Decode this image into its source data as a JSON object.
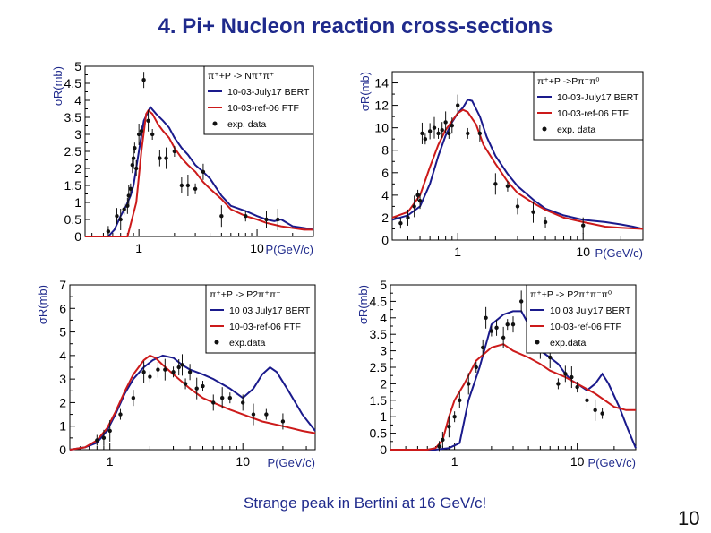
{
  "page": {
    "title": "4.  Pi+ Nucleon reaction cross-sections",
    "note": "Strange peak in Bertini at 16 GeV/c!",
    "page_number": "10"
  },
  "colors": {
    "bert": "#1a1a8c",
    "ftf": "#cc1a1a",
    "data": "#111111",
    "title": "#1f2a8c"
  },
  "chart_data": [
    {
      "type": "line",
      "ylabel": "σR(mb)",
      "xlabel": "P(GeV/c)",
      "xscale": "log",
      "xlim": [
        0.35,
        30
      ],
      "ylim": [
        0,
        5
      ],
      "yticks": [
        "0",
        "0.5",
        "1",
        "1.5",
        "2",
        "2.5",
        "3",
        "3.5",
        "4",
        "4.5",
        "5"
      ],
      "xticks": [
        {
          "v": 1,
          "label": "1"
        },
        {
          "v": 10,
          "label": "10"
        }
      ],
      "legend": [
        "π⁺+P -> Nπ⁺π⁺",
        "10-03-July17 BERT",
        "10-03-ref-06 FTF",
        "exp. data"
      ],
      "series": [
        {
          "key": "bert",
          "x": [
            0.35,
            0.55,
            0.62,
            0.7,
            0.78,
            0.85,
            0.9,
            1.0,
            1.1,
            1.25,
            1.4,
            1.6,
            1.8,
            2.0,
            2.3,
            2.6,
            3,
            3.5,
            4,
            5,
            6,
            8,
            10,
            12,
            14,
            16,
            20,
            25,
            30
          ],
          "y": [
            0,
            0,
            0.2,
            0.6,
            0.9,
            1.2,
            1.5,
            2.5,
            3.4,
            3.8,
            3.6,
            3.4,
            3.2,
            2.9,
            2.6,
            2.4,
            2.1,
            1.9,
            1.7,
            1.2,
            0.9,
            0.75,
            0.6,
            0.5,
            0.45,
            0.5,
            0.3,
            0.25,
            0.2
          ]
        },
        {
          "key": "ftf",
          "x": [
            0.35,
            0.8,
            0.95,
            1.05,
            1.15,
            1.2,
            1.3,
            1.45,
            1.6,
            1.8,
            2.0,
            2.3,
            2.6,
            3,
            3.5,
            4,
            5,
            6,
            8,
            10,
            12,
            16,
            20,
            25,
            30
          ],
          "y": [
            0,
            0,
            1.0,
            2.5,
            3.6,
            3.7,
            3.6,
            3.3,
            3.1,
            2.9,
            2.6,
            2.3,
            2.1,
            1.9,
            1.6,
            1.4,
            1.1,
            0.8,
            0.6,
            0.5,
            0.4,
            0.3,
            0.25,
            0.2,
            0.2
          ]
        },
        {
          "key": "data",
          "x": [
            0.55,
            0.65,
            0.7,
            0.75,
            0.8,
            0.82,
            0.85,
            0.88,
            0.9,
            0.92,
            0.95,
            1.0,
            1.05,
            1.1,
            1.2,
            1.3,
            1.5,
            1.7,
            2.0,
            2.3,
            2.6,
            3,
            3.5,
            5,
            8,
            12,
            15
          ],
          "y": [
            0.15,
            0.6,
            0.5,
            0.8,
            0.9,
            1.2,
            1.4,
            2.1,
            2.3,
            2.6,
            2.0,
            3.0,
            3.1,
            4.6,
            3.4,
            3.0,
            2.3,
            2.3,
            2.5,
            1.5,
            1.5,
            1.4,
            1.9,
            0.6,
            0.6,
            0.5,
            0.5
          ]
        }
      ]
    },
    {
      "type": "line",
      "ylabel": "σR(mb)",
      "xlabel": "P(GeV/c)",
      "xscale": "log",
      "xlim": [
        0.3,
        30
      ],
      "ylim": [
        0,
        15
      ],
      "yticks": [
        "0",
        "2",
        "4",
        "6",
        "8",
        "10",
        "12",
        "14"
      ],
      "xticks": [
        {
          "v": 1,
          "label": "1"
        },
        {
          "v": 10,
          "label": "10"
        }
      ],
      "legend": [
        "π⁺+P ->Pπ⁺π⁰",
        "10-03-July17 BERT",
        "10-03-ref-06 FTF",
        "exp. data"
      ],
      "series": [
        {
          "key": "bert",
          "x": [
            0.3,
            0.4,
            0.5,
            0.6,
            0.7,
            0.8,
            0.9,
            1.0,
            1.1,
            1.2,
            1.3,
            1.5,
            1.7,
            2,
            2.5,
            3,
            4,
            5,
            7,
            10,
            15,
            20,
            25,
            30
          ],
          "y": [
            1.8,
            2.2,
            3.0,
            5.0,
            7.5,
            9.3,
            10.5,
            11.3,
            11.8,
            12.5,
            12.4,
            11.0,
            9.2,
            7.5,
            5.9,
            4.8,
            3.6,
            2.8,
            2.2,
            1.8,
            1.6,
            1.4,
            1.2,
            1.0
          ]
        },
        {
          "key": "ftf",
          "x": [
            0.3,
            0.4,
            0.5,
            0.6,
            0.7,
            0.8,
            0.9,
            1.0,
            1.1,
            1.2,
            1.4,
            1.6,
            2,
            2.5,
            3,
            4,
            5,
            7,
            10,
            15,
            20,
            30
          ],
          "y": [
            2.0,
            2.5,
            4.0,
            6.5,
            8.5,
            9.8,
            10.6,
            11.3,
            11.6,
            11.4,
            10.3,
            8.5,
            6.8,
            5.2,
            4.2,
            3.3,
            2.7,
            2.0,
            1.6,
            1.2,
            1.1,
            1.0
          ]
        },
        {
          "key": "data",
          "x": [
            0.35,
            0.4,
            0.45,
            0.48,
            0.5,
            0.52,
            0.55,
            0.6,
            0.65,
            0.7,
            0.75,
            0.8,
            0.85,
            0.9,
            1.0,
            1.2,
            1.5,
            2,
            2.5,
            3,
            4,
            5,
            10
          ],
          "y": [
            1.5,
            2.0,
            3.0,
            4.0,
            3.5,
            9.5,
            9.0,
            9.7,
            10.0,
            9.5,
            9.8,
            10.5,
            9.5,
            10.2,
            12.0,
            9.5,
            9.5,
            5.0,
            4.8,
            3.0,
            2.5,
            1.6,
            1.3
          ]
        }
      ]
    },
    {
      "type": "line",
      "ylabel": "σR(mb)",
      "xlabel": "P(GeV/c)",
      "xscale": "log",
      "xlim": [
        0.5,
        35
      ],
      "ylim": [
        0,
        7
      ],
      "yticks": [
        "0",
        "1",
        "2",
        "3",
        "4",
        "5",
        "6",
        "7"
      ],
      "xticks": [
        {
          "v": 1,
          "label": "1"
        },
        {
          "v": 10,
          "label": "10"
        }
      ],
      "legend": [
        "π⁺+P -> P2π⁺π⁻",
        "10 03 July17 BERT",
        "10-03-ref-06 FTF",
        "exp.data"
      ],
      "series": [
        {
          "key": "bert",
          "x": [
            0.5,
            0.65,
            0.8,
            0.95,
            1.1,
            1.3,
            1.5,
            1.8,
            2.1,
            2.5,
            3,
            3.5,
            4,
            5,
            6,
            8,
            10,
            12,
            14,
            16,
            18,
            22,
            28,
            35
          ],
          "y": [
            0,
            0.1,
            0.3,
            0.8,
            1.5,
            2.4,
            3.0,
            3.5,
            3.8,
            4.0,
            3.9,
            3.6,
            3.4,
            3.2,
            3.0,
            2.6,
            2.2,
            2.6,
            3.2,
            3.5,
            3.3,
            2.5,
            1.5,
            0.8
          ]
        },
        {
          "key": "ftf",
          "x": [
            0.5,
            0.65,
            0.8,
            0.95,
            1.1,
            1.3,
            1.5,
            1.8,
            2.0,
            2.2,
            2.5,
            3,
            4,
            5,
            6,
            8,
            10,
            14,
            20,
            28,
            35
          ],
          "y": [
            0,
            0.1,
            0.4,
            0.9,
            1.6,
            2.5,
            3.2,
            3.8,
            4.0,
            3.9,
            3.6,
            3.2,
            2.6,
            2.2,
            2.0,
            1.7,
            1.5,
            1.2,
            1.0,
            0.8,
            0.7
          ]
        },
        {
          "key": "data",
          "x": [
            0.8,
            0.9,
            1.0,
            1.2,
            1.5,
            1.8,
            2,
            2.3,
            2.6,
            3,
            3.3,
            3.5,
            3.7,
            4,
            4.5,
            5,
            6,
            7,
            8,
            10,
            12,
            15,
            20
          ],
          "y": [
            0.4,
            0.5,
            0.8,
            1.5,
            2.2,
            3.3,
            3.1,
            3.4,
            3.4,
            3.3,
            3.5,
            3.6,
            2.8,
            3.3,
            2.6,
            2.7,
            2.0,
            2.2,
            2.2,
            2.0,
            1.5,
            1.5,
            1.2
          ]
        }
      ]
    },
    {
      "type": "line",
      "ylabel": "σR(mb)",
      "xlabel": "P(GeV/c)",
      "xscale": "log",
      "xlim": [
        0.3,
        30
      ],
      "ylim": [
        0,
        5
      ],
      "yticks": [
        "0",
        "0.5",
        "1",
        "1.5",
        "2",
        "2.5",
        "3",
        "3.5",
        "4",
        "4.5",
        "5"
      ],
      "xticks": [
        {
          "v": 1,
          "label": "1"
        },
        {
          "v": 10,
          "label": "10"
        }
      ],
      "legend": [
        "π⁺+P -> P2π⁺π⁻π⁰",
        "10 03 July17 BERT",
        "10-03-ref-06 FTF",
        "exp.data"
      ],
      "series": [
        {
          "key": "bert",
          "x": [
            0.3,
            0.7,
            0.9,
            1.1,
            1.3,
            1.6,
            2.0,
            2.5,
            3,
            3.5,
            4,
            5,
            6,
            7,
            8,
            9,
            10,
            12,
            14,
            16,
            18,
            22,
            26,
            30
          ],
          "y": [
            0,
            0,
            0.05,
            0.2,
            1.5,
            2.5,
            3.8,
            4.1,
            4.2,
            4.2,
            3.8,
            3.0,
            2.8,
            2.6,
            2.3,
            2.1,
            2.0,
            1.8,
            2.0,
            2.3,
            2.0,
            1.3,
            0.6,
            0.05
          ]
        },
        {
          "key": "ftf",
          "x": [
            0.3,
            0.6,
            0.7,
            0.8,
            0.9,
            1.0,
            1.2,
            1.5,
            2.0,
            2.5,
            3,
            4,
            5,
            6,
            8,
            10,
            14,
            20,
            25,
            30
          ],
          "y": [
            0,
            0,
            0.05,
            0.3,
            1.0,
            1.5,
            2.0,
            2.7,
            3.1,
            3.2,
            3.0,
            2.8,
            2.6,
            2.4,
            2.2,
            2.0,
            1.7,
            1.3,
            1.2,
            1.2
          ]
        },
        {
          "key": "data",
          "x": [
            0.75,
            0.8,
            0.9,
            1.0,
            1.1,
            1.3,
            1.5,
            1.7,
            1.8,
            2.0,
            2.2,
            2.5,
            2.7,
            3,
            3.5,
            4,
            5,
            6,
            7,
            8,
            9,
            10,
            12,
            14,
            16
          ],
          "y": [
            0.1,
            0.3,
            0.7,
            1.0,
            1.5,
            2.0,
            2.5,
            3.1,
            4.0,
            3.6,
            3.7,
            3.4,
            3.8,
            3.8,
            4.5,
            3.4,
            3.0,
            2.8,
            2.0,
            2.3,
            2.2,
            1.9,
            1.5,
            1.2,
            1.1
          ]
        }
      ]
    }
  ]
}
